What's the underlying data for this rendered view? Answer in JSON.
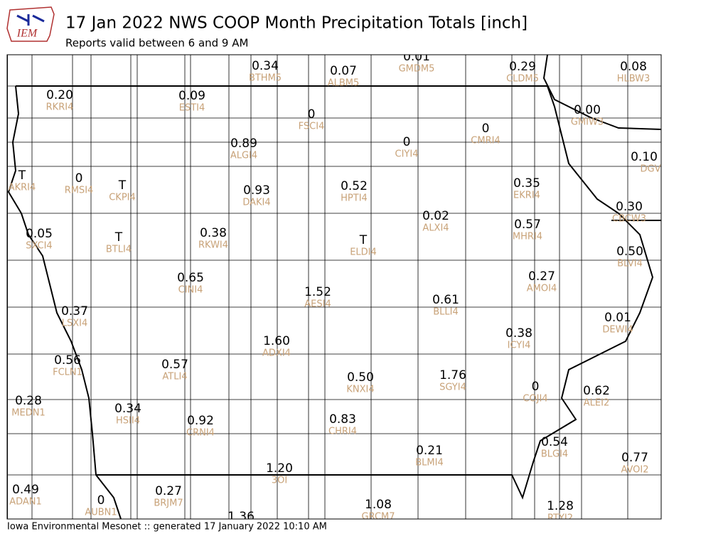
{
  "header": {
    "logo": "IEM",
    "title": "17 Jan 2022 NWS COOP Month Precipitation Totals [inch]",
    "subtitle": "Reports valid between 6 and 9 AM"
  },
  "stations": [
    {
      "value": "0.34",
      "id": "BTHM5"
    },
    {
      "value": "0.07",
      "id": "ALBM5"
    },
    {
      "value": "0.01",
      "id": "GMDM5"
    },
    {
      "value": "0.29",
      "id": "CLDM5"
    },
    {
      "value": "0.08",
      "id": "HLBW3"
    },
    {
      "value": "0.20",
      "id": "RKRI4"
    },
    {
      "value": "0.09",
      "id": "ESTI4"
    },
    {
      "value": "0.00",
      "id": "GMIW3"
    },
    {
      "value": "0",
      "id": "FSCI4"
    },
    {
      "value": "0",
      "id": "CMRI4"
    },
    {
      "value": "0.89",
      "id": "ALGI4"
    },
    {
      "value": "0",
      "id": "CIYI4"
    },
    {
      "value": "0.10",
      "id": "DGV"
    },
    {
      "value": "T",
      "id": "AKRI4"
    },
    {
      "value": "0",
      "id": "RMSI4"
    },
    {
      "value": "T",
      "id": "CKPI4"
    },
    {
      "value": "0.93",
      "id": "DAKI4"
    },
    {
      "value": "0.52",
      "id": "HPTI4"
    },
    {
      "value": "0.35",
      "id": "EKRI4"
    },
    {
      "value": "0.30",
      "id": "CBCW3"
    },
    {
      "value": "0.02",
      "id": "ALXI4"
    },
    {
      "value": "0.57",
      "id": "MHRI4"
    },
    {
      "value": "0.05",
      "id": "SXCI4"
    },
    {
      "value": "T",
      "id": "BTLI4"
    },
    {
      "value": "0.38",
      "id": "RKWI4"
    },
    {
      "value": "T",
      "id": "ELDI4"
    },
    {
      "value": "0.50",
      "id": "BLVI4"
    },
    {
      "value": "0.65",
      "id": "CINI4"
    },
    {
      "value": "0.27",
      "id": "AMOI4"
    },
    {
      "value": "1.52",
      "id": "AESI4"
    },
    {
      "value": "0.61",
      "id": "BLLI4"
    },
    {
      "value": "0.37",
      "id": "LSXI4"
    },
    {
      "value": "0.01",
      "id": "DEWI4"
    },
    {
      "value": "0.38",
      "id": "ICYI4"
    },
    {
      "value": "1.60",
      "id": "ADXI4"
    },
    {
      "value": "0.56",
      "id": "FCLN1"
    },
    {
      "value": "0.57",
      "id": "ATLI4"
    },
    {
      "value": "0.50",
      "id": "KNXI4"
    },
    {
      "value": "1.76",
      "id": "SGYI4"
    },
    {
      "value": "0",
      "id": "COJI4"
    },
    {
      "value": "0.62",
      "id": "ALEI2"
    },
    {
      "value": "0.28",
      "id": "MEDN1"
    },
    {
      "value": "0.34",
      "id": "HSII4"
    },
    {
      "value": "0.92",
      "id": "CRNI4"
    },
    {
      "value": "0.83",
      "id": "CHRI4"
    },
    {
      "value": "0.21",
      "id": "BLMI4"
    },
    {
      "value": "0.54",
      "id": "BLGI4"
    },
    {
      "value": "0.77",
      "id": "AVOI2"
    },
    {
      "value": "1.20",
      "id": "3OI"
    },
    {
      "value": "0.49",
      "id": "ADAN1"
    },
    {
      "value": "0",
      "id": "AUBN1"
    },
    {
      "value": "0.27",
      "id": "BRJM7"
    },
    {
      "value": "1.08",
      "id": "GRCM7"
    },
    {
      "value": "1.28",
      "id": "RTYI2"
    },
    {
      "value": "1.36"
    }
  ],
  "footer": "Iowa Environmental Mesonet :: generated 17 January 2022 10:10 AM"
}
